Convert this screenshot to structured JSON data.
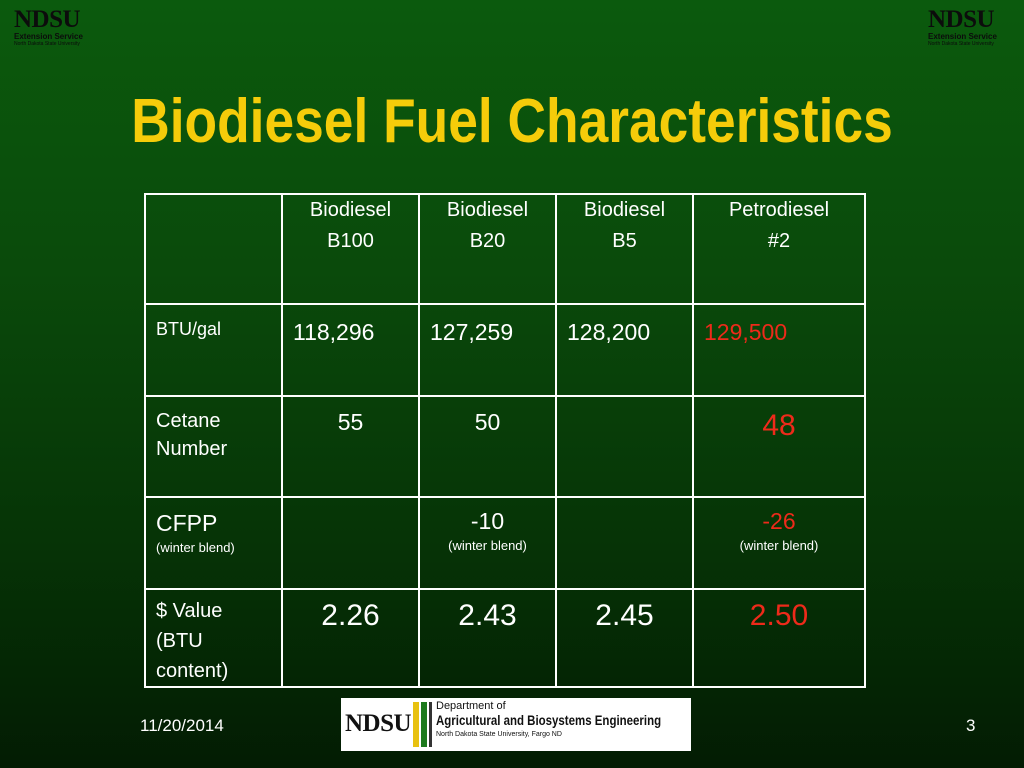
{
  "logos": {
    "corner": {
      "name": "NDSU",
      "line1": "Extension Service",
      "line2": "North Dakota State University"
    },
    "department": {
      "name": "NDSU",
      "line1": "Department of",
      "line2": "Agricultural and Biosystems Engineering",
      "line3": "North Dakota State University, Fargo ND"
    }
  },
  "title": "Biodiesel Fuel Characteristics",
  "table": {
    "headers": [
      "",
      [
        "Biodiesel",
        "B100"
      ],
      [
        "Biodiesel",
        "B20"
      ],
      [
        "Biodiesel",
        "B5"
      ],
      [
        "Petrodiesel",
        "#2"
      ]
    ],
    "rows": {
      "btu": {
        "label": "BTU/gal",
        "values": [
          "118,296",
          "127,259",
          "128,200",
          "129,500"
        ]
      },
      "cetane": {
        "label_line1": "Cetane",
        "label_line2": "Number",
        "values": [
          "55",
          "50",
          "",
          "48"
        ]
      },
      "cfpp": {
        "label": "CFPP",
        "label_note": "(winter blend)",
        "values": [
          "",
          "-10",
          "",
          "-26"
        ],
        "notes": [
          "",
          "(winter blend)",
          "",
          "(winter blend)"
        ]
      },
      "value": {
        "label_line1": "$ Value",
        "label_line2": "(BTU",
        "label_line3": "content)",
        "values": [
          "2.26",
          "2.43",
          "2.45",
          "2.50"
        ]
      }
    }
  },
  "colors": {
    "title": "#f5cc0a",
    "petrodiesel": "#ee2a1a",
    "text": "#ffffff",
    "background": "#0a4a0b"
  },
  "footer": {
    "date": "11/20/2014",
    "page": "3"
  }
}
